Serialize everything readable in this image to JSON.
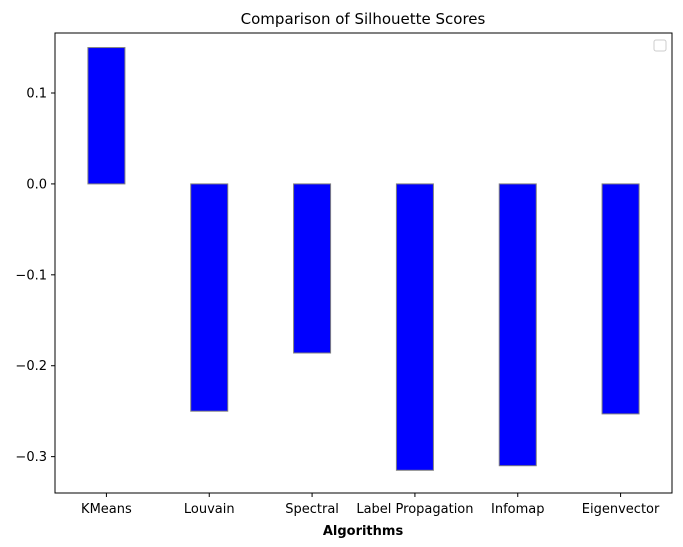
{
  "chart_data": {
    "type": "bar",
    "title": "Comparison of Silhouette Scores",
    "xlabel": "Algorithms",
    "ylabel": "",
    "categories": [
      "KMeans",
      "Louvain",
      "Spectral",
      "Label Propagation",
      "Infomap",
      "Eigenvector"
    ],
    "values": [
      0.15,
      -0.25,
      -0.186,
      -0.315,
      -0.31,
      -0.253
    ],
    "ylim": [
      -0.34,
      0.166
    ],
    "yticks": [
      0.1,
      0.0,
      -0.1,
      -0.2,
      -0.3
    ],
    "ytick_labels": [
      "0.1",
      "0.0",
      "−0.1",
      "−0.2",
      "−0.3"
    ],
    "bar_color": "#0000ff",
    "bar_edge_color": "#808080",
    "legend": {
      "placement": "top-right",
      "entries": []
    },
    "grid": false
  }
}
